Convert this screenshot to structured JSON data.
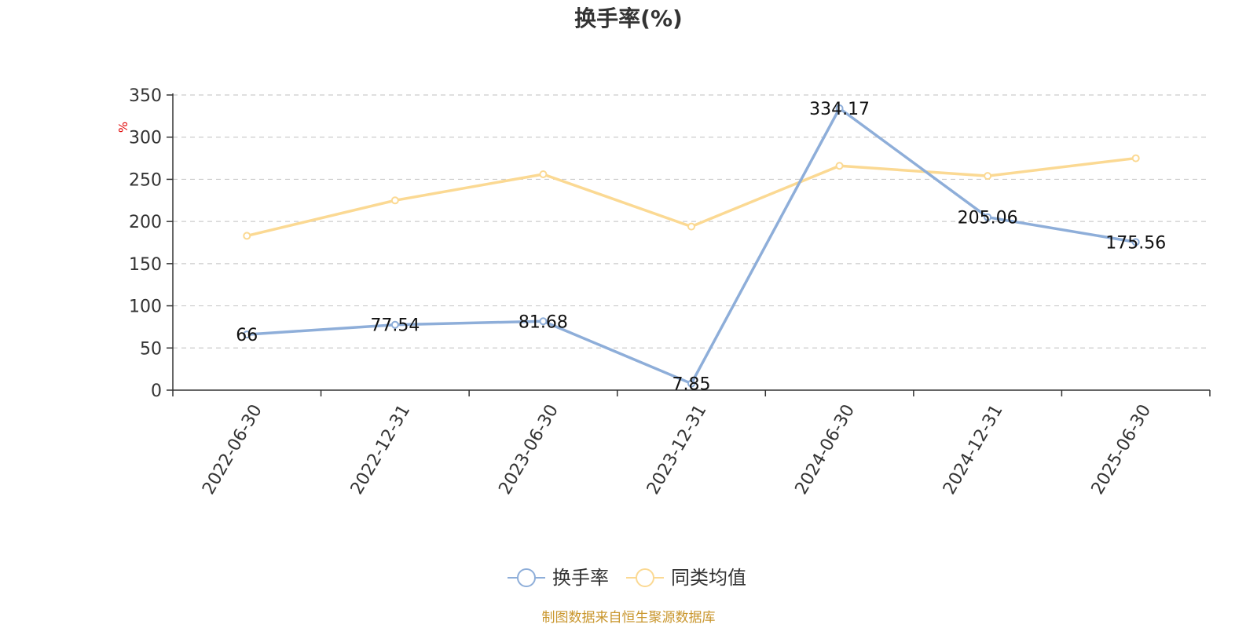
{
  "chart_data": {
    "type": "line",
    "title": "换手率(%)",
    "ylabel": "%",
    "ylim": [
      0,
      350
    ],
    "yticks": [
      0,
      50,
      100,
      150,
      200,
      250,
      300,
      350
    ],
    "categories": [
      "2022-06-30",
      "2022-12-31",
      "2023-06-30",
      "2023-12-31",
      "2024-06-30",
      "2024-12-31",
      "2025-06-30"
    ],
    "grid": "horizontal-dashed",
    "legend_position": "bottom-center",
    "series": [
      {
        "name": "换手率",
        "color": "#8eaed9",
        "values": [
          66,
          77.54,
          81.68,
          7.85,
          334.17,
          205.06,
          175.56
        ],
        "labels": [
          "66",
          "77.54",
          "81.68",
          "7.85",
          "334.17",
          "205.06",
          "175.56"
        ]
      },
      {
        "name": "同类均值",
        "color": "#fbd993",
        "values": [
          183,
          225,
          256,
          194,
          266,
          254,
          275
        ]
      }
    ]
  },
  "source_note": "制图数据来自恒生聚源数据库"
}
